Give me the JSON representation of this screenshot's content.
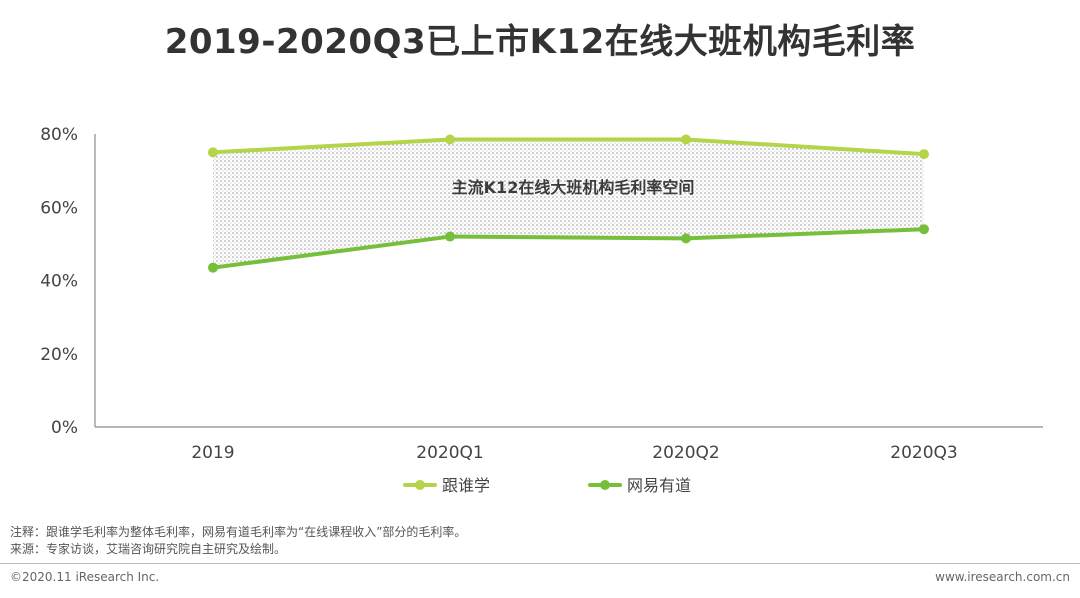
{
  "title": "2019-2020Q3已上市K12在线大班机构毛利率",
  "chart_data": {
    "type": "line",
    "categories": [
      "2019",
      "2020Q1",
      "2020Q2",
      "2020Q3"
    ],
    "series": [
      {
        "name": "跟谁学",
        "values": [
          75,
          78.5,
          78.5,
          74.5
        ],
        "color": "#b4d44a"
      },
      {
        "name": "网易有道",
        "values": [
          43.5,
          52,
          51.5,
          54
        ],
        "color": "#76bf3a"
      }
    ],
    "yticks": [
      "0%",
      "20%",
      "40%",
      "60%",
      "80%"
    ],
    "ylim": [
      0,
      80
    ],
    "band_label": "主流K12在线大班机构毛利率空间",
    "legend_position": "bottom-center"
  },
  "notes": {
    "line1": "注释：跟谁学毛利率为整体毛利率，网易有道毛利率为“在线课程收入”部分的毛利率。",
    "line2": "来源：专家访谈，艾瑞咨询研究院自主研究及绘制。"
  },
  "footer": {
    "copyright": "©2020.11 iResearch Inc.",
    "website": "www.iresearch.com.cn"
  }
}
